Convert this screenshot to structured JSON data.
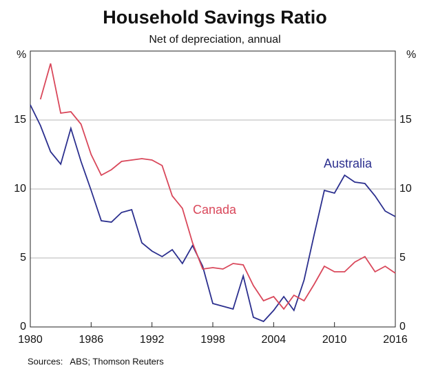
{
  "chart_data": {
    "type": "line",
    "title": "Household Savings Ratio",
    "subtitle": "Net of depreciation, annual",
    "y_unit": "%",
    "source": "Sources:   ABS; Thomson Reuters",
    "x": [
      1980,
      1981,
      1982,
      1983,
      1984,
      1985,
      1986,
      1987,
      1988,
      1989,
      1990,
      1991,
      1992,
      1993,
      1994,
      1995,
      1996,
      1997,
      1998,
      1999,
      2000,
      2001,
      2002,
      2003,
      2004,
      2005,
      2006,
      2007,
      2008,
      2009,
      2010,
      2011,
      2012,
      2013,
      2014,
      2015,
      2016
    ],
    "series": [
      {
        "name": "Australia",
        "color": "#2b2f8e",
        "values": [
          16.1,
          14.6,
          12.7,
          11.8,
          14.4,
          12.0,
          9.9,
          7.7,
          7.6,
          8.3,
          8.5,
          6.1,
          5.5,
          5.1,
          5.6,
          4.6,
          5.9,
          4.4,
          1.7,
          1.5,
          1.3,
          3.7,
          0.7,
          0.4,
          1.2,
          2.2,
          1.2,
          3.4,
          6.7,
          9.9,
          9.7,
          11.0,
          10.5,
          10.4,
          9.5,
          8.4,
          8.0
        ]
      },
      {
        "name": "Canada",
        "color": "#d9475a",
        "values": [
          null,
          16.5,
          19.1,
          15.5,
          15.6,
          14.7,
          12.5,
          11.0,
          11.4,
          12.0,
          12.1,
          12.2,
          12.1,
          11.7,
          9.5,
          8.6,
          6.1,
          4.2,
          4.3,
          4.2,
          4.6,
          4.5,
          3.0,
          1.9,
          2.2,
          1.3,
          2.3,
          1.9,
          3.1,
          4.4,
          4.0,
          4.0,
          4.7,
          5.1,
          4.0,
          4.4,
          3.9
        ]
      }
    ],
    "xlim": [
      1980,
      2016
    ],
    "xticks": [
      1980,
      1986,
      1992,
      1998,
      2004,
      2010,
      2016
    ],
    "ylim": [
      0,
      20
    ],
    "yticks": [
      0,
      5,
      10,
      15
    ],
    "grid": true,
    "legend": "inline"
  }
}
